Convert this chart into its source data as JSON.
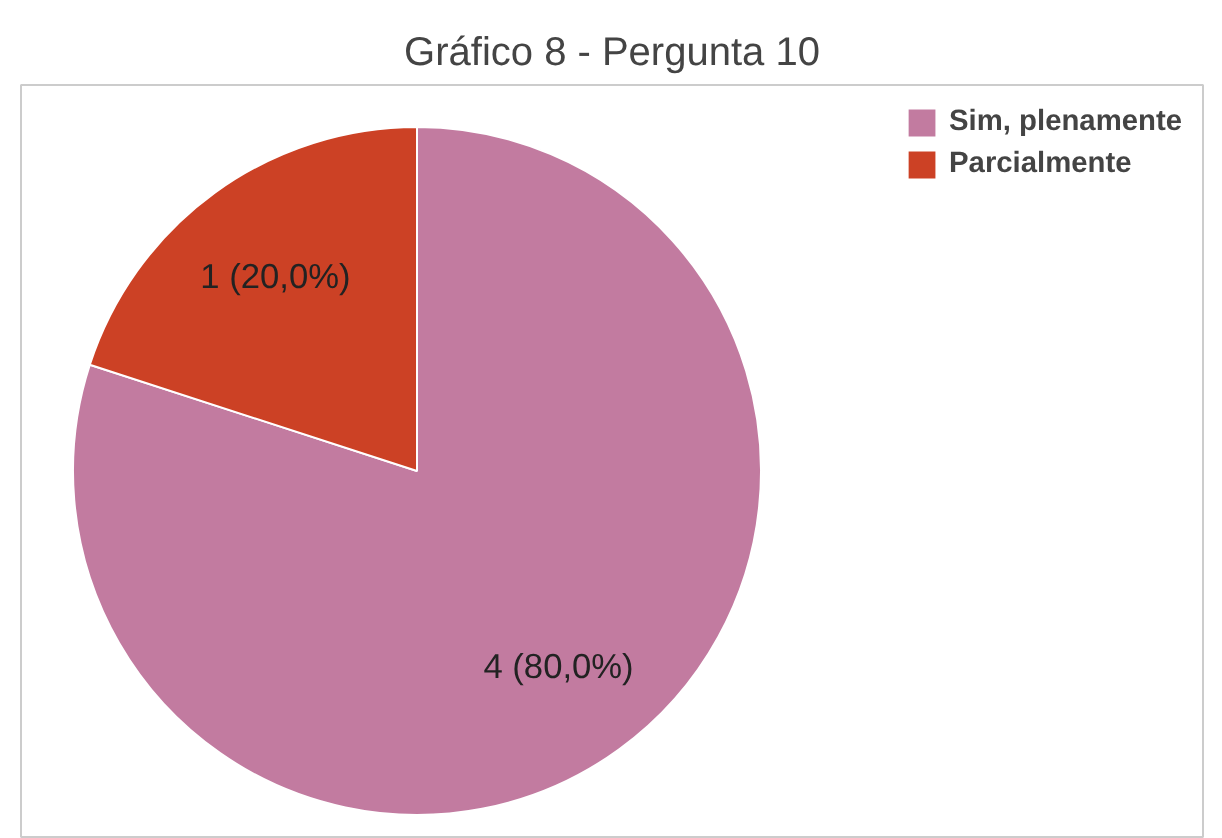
{
  "chart_data": {
    "type": "pie",
    "title": "Gráfico 8 - Pergunta 10",
    "categories": [
      "Sim, plenamente",
      "Parcialmente"
    ],
    "values": [
      4,
      1
    ],
    "colors": [
      "#c27ba0",
      "#cc4125"
    ],
    "value_labels": [
      "4 (80,0%)",
      "1 (20,0%)"
    ],
    "legend": "top right"
  }
}
